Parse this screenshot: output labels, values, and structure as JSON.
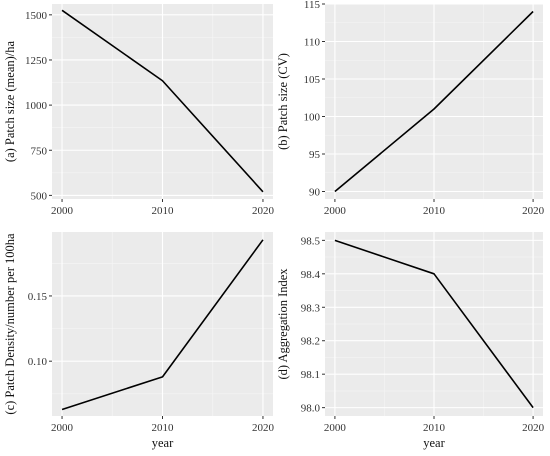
{
  "chart_data": [
    {
      "type": "line",
      "x": [
        2000,
        2010,
        2020
      ],
      "y": [
        1525,
        1135,
        520
      ],
      "xlabel": "",
      "ylabel": "(a) Patch size (mean)/ha",
      "xlim": [
        1999,
        2021
      ],
      "ylim": [
        480,
        1560
      ],
      "xticks": [
        2000,
        2010,
        2020
      ],
      "yticks": [
        500,
        750,
        1000,
        1250,
        1500
      ],
      "yticklabels": [
        "500",
        "750",
        "1000",
        "1250",
        "1500"
      ],
      "grid": true
    },
    {
      "type": "line",
      "x": [
        2000,
        2010,
        2020
      ],
      "y": [
        90,
        101,
        114
      ],
      "xlabel": "",
      "ylabel": "(b) Patch size (CV)",
      "xlim": [
        1999,
        2021
      ],
      "ylim": [
        89,
        115
      ],
      "xticks": [
        2000,
        2010,
        2020
      ],
      "yticks": [
        90,
        95,
        100,
        105,
        110,
        115
      ],
      "yticklabels": [
        "90",
        "95",
        "100",
        "105",
        "110",
        "115"
      ],
      "grid": true
    },
    {
      "type": "line",
      "x": [
        2000,
        2010,
        2020
      ],
      "y": [
        0.063,
        0.088,
        0.193
      ],
      "xlabel": "year",
      "ylabel": "(c) Patch Density/number per 100ha",
      "xlim": [
        1999,
        2021
      ],
      "ylim": [
        0.058,
        0.199
      ],
      "xticks": [
        2000,
        2010,
        2020
      ],
      "yticks": [
        0.1,
        0.15
      ],
      "yticklabels": [
        "0.10",
        "0.15"
      ],
      "grid": true
    },
    {
      "type": "line",
      "x": [
        2000,
        2010,
        2020
      ],
      "y": [
        98.5,
        98.4,
        98.0
      ],
      "xlabel": "year",
      "ylabel": "(d) Aggregation Index",
      "xlim": [
        1999,
        2021
      ],
      "ylim": [
        97.975,
        98.525
      ],
      "xticks": [
        2000,
        2010,
        2020
      ],
      "yticks": [
        98.0,
        98.1,
        98.2,
        98.3,
        98.4,
        98.5
      ],
      "yticklabels": [
        "98.0",
        "98.1",
        "98.2",
        "98.3",
        "98.4",
        "98.5"
      ],
      "grid": true
    }
  ]
}
